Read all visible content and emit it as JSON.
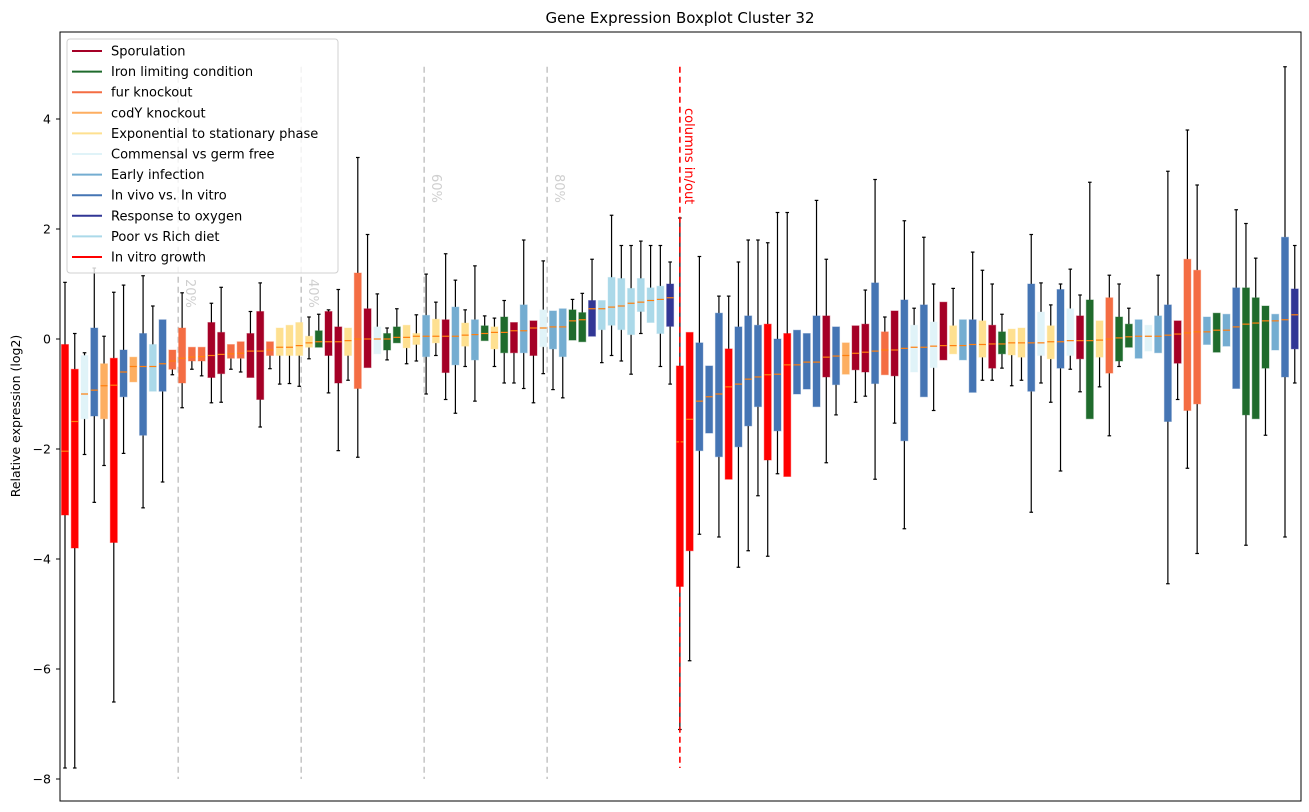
{
  "chart_data": {
    "type": "boxplot",
    "title": "Gene Expression Boxplot Cluster 32",
    "xlabel": "",
    "ylabel": "Relative expression (log2)",
    "ylim": [
      -8.4,
      5.6
    ],
    "yticks": [
      4,
      2,
      0,
      -2,
      -4,
      -6,
      -8
    ],
    "grid": false,
    "legend_position": "top-left",
    "median_color": "#ff7f0e",
    "groups": [
      {
        "name": "Sporulation",
        "color": "#a50026"
      },
      {
        "name": "Iron limiting condition",
        "color": "#1f6b2c"
      },
      {
        "name": "fur knockout",
        "color": "#f46d43"
      },
      {
        "name": "codY knockout",
        "color": "#fdae61"
      },
      {
        "name": "Exponential to stationary phase",
        "color": "#fee090"
      },
      {
        "name": "Commensal vs germ free",
        "color": "#e0f3f8"
      },
      {
        "name": "Early infection",
        "color": "#74add1"
      },
      {
        "name": "In vivo vs. In vitro",
        "color": "#4575b4"
      },
      {
        "name": "Response to oxygen",
        "color": "#313695"
      },
      {
        "name": "Poor vs Rich diet",
        "color": "#abd9e9"
      },
      {
        "name": "In vitro growth",
        "color": "#ff0000"
      }
    ],
    "box_fields": [
      "group_index",
      "q1",
      "q3",
      "median",
      "whisker_low",
      "whisker_high"
    ],
    "boxes": [
      [
        10,
        -3.2,
        -0.1,
        -2.04,
        -7.8,
        1.03
      ],
      [
        10,
        -3.8,
        -0.55,
        -1.5,
        -7.8,
        0.1
      ],
      [
        5,
        -1.45,
        -0.3,
        -1.0,
        -2.1,
        -0.25
      ],
      [
        7,
        -1.4,
        0.2,
        -0.93,
        -2.97,
        1.29
      ],
      [
        3,
        -1.45,
        -0.45,
        -0.85,
        -2.3,
        0.05
      ],
      [
        10,
        -3.7,
        -0.35,
        -0.84,
        -6.6,
        0.85
      ],
      [
        7,
        -1.05,
        -0.2,
        -0.6,
        -2.08,
        0.98
      ],
      [
        3,
        -0.78,
        -0.33,
        -0.5,
        -0.78,
        -0.33
      ],
      [
        7,
        -1.75,
        0.1,
        -0.5,
        -3.07,
        1.15
      ],
      [
        9,
        -0.95,
        -0.1,
        -0.5,
        -0.95,
        0.6
      ],
      [
        7,
        -0.95,
        0.35,
        -0.45,
        -2.6,
        0.35
      ],
      [
        2,
        -0.55,
        -0.2,
        -0.4,
        -0.65,
        -0.2
      ],
      [
        2,
        -0.8,
        0.2,
        -0.35,
        -1.25,
        0.84
      ],
      [
        2,
        -0.4,
        -0.15,
        -0.33,
        -0.55,
        -0.15
      ],
      [
        2,
        -0.4,
        -0.15,
        -0.32,
        -0.67,
        -0.15
      ],
      [
        0,
        -0.7,
        0.3,
        -0.3,
        -1.16,
        0.65
      ],
      [
        0,
        -0.63,
        0.12,
        -0.28,
        -1.15,
        0.94
      ],
      [
        2,
        -0.35,
        -0.1,
        -0.27,
        -0.55,
        -0.1
      ],
      [
        2,
        -0.35,
        -0.05,
        -0.26,
        -0.6,
        -0.05
      ],
      [
        0,
        -0.7,
        0.1,
        -0.22,
        -0.7,
        0.5
      ],
      [
        0,
        -1.1,
        0.5,
        -0.22,
        -1.6,
        1.02
      ],
      [
        2,
        -0.3,
        -0.05,
        -0.2,
        -0.54,
        -0.05
      ],
      [
        4,
        -0.3,
        0.2,
        -0.15,
        -0.82,
        0.2
      ],
      [
        4,
        -0.3,
        0.25,
        -0.15,
        -0.81,
        0.25
      ],
      [
        4,
        -0.3,
        0.3,
        -0.12,
        -0.86,
        0.3
      ],
      [
        4,
        -0.15,
        0.05,
        -0.07,
        -0.36,
        0.4
      ],
      [
        1,
        -0.15,
        0.15,
        -0.05,
        -0.15,
        0.45
      ],
      [
        0,
        -0.3,
        0.5,
        -0.05,
        -0.98,
        0.53
      ],
      [
        0,
        -0.8,
        0.22,
        -0.05,
        -2.03,
        0.9
      ],
      [
        4,
        -0.3,
        0.2,
        -0.03,
        -0.75,
        0.2
      ],
      [
        2,
        -0.9,
        1.2,
        0.0,
        -2.15,
        3.3
      ],
      [
        0,
        -0.52,
        0.55,
        0.0,
        -0.52,
        1.9
      ],
      [
        5,
        -0.27,
        0.22,
        0.0,
        -0.27,
        0.82
      ],
      [
        1,
        -0.2,
        0.1,
        0.0,
        -0.38,
        0.2
      ],
      [
        1,
        -0.07,
        0.22,
        0.03,
        -0.07,
        0.55
      ],
      [
        4,
        -0.16,
        0.25,
        0.03,
        -0.45,
        0.25
      ],
      [
        4,
        -0.1,
        0.1,
        0.05,
        -0.4,
        0.44
      ],
      [
        6,
        -0.32,
        0.43,
        0.05,
        -1.0,
        1.18
      ],
      [
        4,
        -0.07,
        0.36,
        0.05,
        -0.3,
        0.67
      ],
      [
        0,
        -0.61,
        0.35,
        0.05,
        -1.1,
        1.55
      ],
      [
        6,
        -0.47,
        0.58,
        0.05,
        -1.35,
        1.07
      ],
      [
        4,
        -0.13,
        0.29,
        0.07,
        -0.5,
        0.53
      ],
      [
        6,
        -0.38,
        0.35,
        0.08,
        -1.13,
        1.33
      ],
      [
        1,
        -0.03,
        0.24,
        0.1,
        -0.03,
        0.42
      ],
      [
        4,
        -0.18,
        0.22,
        0.12,
        -0.5,
        0.38
      ],
      [
        1,
        -0.25,
        0.4,
        0.12,
        -0.8,
        0.7
      ],
      [
        0,
        -0.25,
        0.3,
        0.15,
        -0.8,
        0.3
      ],
      [
        6,
        -0.25,
        0.62,
        0.15,
        -0.9,
        1.8
      ],
      [
        0,
        -0.3,
        0.33,
        0.2,
        -1.16,
        0.33
      ],
      [
        5,
        -0.14,
        0.53,
        0.2,
        -0.63,
        1.42
      ],
      [
        6,
        -0.18,
        0.51,
        0.22,
        -0.92,
        0.51
      ],
      [
        6,
        -0.32,
        0.55,
        0.22,
        -1.07,
        0.55
      ],
      [
        1,
        -0.02,
        0.53,
        0.33,
        -0.02,
        0.72
      ],
      [
        1,
        -0.05,
        0.48,
        0.35,
        -0.05,
        0.83
      ],
      [
        8,
        0.05,
        0.7,
        0.55,
        0.05,
        1.45
      ],
      [
        9,
        0.17,
        0.7,
        0.55,
        -0.43,
        0.7
      ],
      [
        9,
        0.25,
        1.12,
        0.58,
        -0.3,
        2.25
      ],
      [
        9,
        0.17,
        1.1,
        0.6,
        -0.4,
        1.7
      ],
      [
        9,
        0.08,
        0.92,
        0.65,
        -0.64,
        1.7
      ],
      [
        9,
        0.5,
        1.1,
        0.67,
        0.1,
        1.78
      ],
      [
        9,
        0.3,
        0.93,
        0.7,
        0.3,
        1.7
      ],
      [
        9,
        0.1,
        0.96,
        0.72,
        -0.5,
        1.7
      ],
      [
        8,
        0.23,
        1.0,
        0.75,
        -0.82,
        1.4
      ],
      [
        10,
        -4.5,
        -0.49,
        -1.87,
        -7.1,
        2.2
      ],
      [
        10,
        -3.85,
        0.12,
        -1.46,
        -5.85,
        0.12
      ],
      [
        7,
        -2.03,
        -0.07,
        -1.13,
        -3.55,
        1.5
      ],
      [
        7,
        -1.71,
        -0.49,
        -1.05,
        -1.71,
        -0.49
      ],
      [
        7,
        -2.14,
        0.47,
        -1.0,
        -3.6,
        0.78
      ],
      [
        10,
        -2.55,
        -0.18,
        -0.87,
        -2.55,
        0.78
      ],
      [
        7,
        -1.96,
        0.22,
        -0.82,
        -4.15,
        1.4
      ],
      [
        7,
        -1.58,
        0.42,
        -0.73,
        -3.85,
        1.8
      ],
      [
        7,
        -1.23,
        0.25,
        -0.69,
        -2.85,
        1.8
      ],
      [
        10,
        -2.2,
        0.27,
        -0.65,
        -3.95,
        1.75
      ],
      [
        7,
        -1.67,
        0.0,
        -0.64,
        -2.45,
        2.3
      ],
      [
        10,
        -2.5,
        0.1,
        -0.47,
        -2.5,
        2.3
      ],
      [
        7,
        -1.0,
        0.16,
        -0.47,
        -1.0,
        0.16
      ],
      [
        7,
        -0.91,
        0.1,
        -0.42,
        -0.91,
        0.1
      ],
      [
        7,
        -1.23,
        0.42,
        -0.42,
        -1.23,
        2.52
      ],
      [
        0,
        -0.69,
        0.42,
        -0.33,
        -2.25,
        1.45
      ],
      [
        7,
        -0.83,
        0.22,
        -0.31,
        -1.38,
        0.22
      ],
      [
        3,
        -0.64,
        -0.07,
        -0.3,
        -0.64,
        -0.07
      ],
      [
        0,
        -0.56,
        0.24,
        -0.26,
        -1.15,
        0.24
      ],
      [
        0,
        -0.6,
        0.27,
        -0.24,
        -1.04,
        0.89
      ],
      [
        7,
        -0.81,
        1.02,
        -0.22,
        -2.55,
        2.9
      ],
      [
        2,
        -0.65,
        0.13,
        -0.2,
        -0.65,
        0.4
      ],
      [
        0,
        -0.67,
        0.51,
        -0.2,
        -1.53,
        0.51
      ],
      [
        7,
        -1.85,
        0.71,
        -0.17,
        -3.45,
        2.15
      ],
      [
        5,
        -0.6,
        0.25,
        -0.15,
        -0.6,
        0.56
      ],
      [
        7,
        -1.05,
        0.62,
        -0.15,
        -1.05,
        1.85
      ],
      [
        5,
        -0.52,
        0.31,
        -0.13,
        -1.3,
        1.0
      ],
      [
        0,
        -0.38,
        0.67,
        -0.12,
        -0.38,
        0.67
      ],
      [
        4,
        -0.27,
        0.24,
        -0.12,
        -0.27,
        0.92
      ],
      [
        6,
        -0.38,
        0.35,
        -0.12,
        -0.38,
        0.35
      ],
      [
        7,
        -0.97,
        0.35,
        -0.1,
        -0.97,
        1.58
      ],
      [
        4,
        -0.33,
        0.33,
        -0.1,
        -0.75,
        1.25
      ],
      [
        0,
        -0.53,
        0.25,
        -0.09,
        -0.75,
        1.0
      ],
      [
        1,
        -0.27,
        0.13,
        -0.09,
        -0.53,
        0.45
      ],
      [
        4,
        -0.29,
        0.18,
        -0.07,
        -0.85,
        0.18
      ],
      [
        4,
        -0.33,
        0.2,
        -0.07,
        -0.75,
        0.2
      ],
      [
        7,
        -0.95,
        1.0,
        -0.07,
        -3.15,
        1.9
      ],
      [
        5,
        -0.3,
        0.49,
        -0.07,
        -0.8,
        1.02
      ],
      [
        4,
        -0.36,
        0.24,
        -0.05,
        -1.15,
        0.62
      ],
      [
        7,
        -0.53,
        0.9,
        -0.05,
        -2.4,
        1.0
      ],
      [
        5,
        -0.3,
        0.55,
        -0.03,
        -0.55,
        1.27
      ],
      [
        0,
        -0.36,
        0.42,
        -0.03,
        -0.96,
        0.8
      ],
      [
        1,
        -1.45,
        0.71,
        -0.03,
        -1.45,
        2.85
      ],
      [
        4,
        -0.33,
        0.33,
        -0.02,
        -0.87,
        0.33
      ],
      [
        2,
        -0.62,
        0.75,
        0.0,
        -1.76,
        1.16
      ],
      [
        1,
        -0.4,
        0.4,
        0.02,
        -0.5,
        1.0
      ],
      [
        1,
        -0.15,
        0.27,
        0.04,
        -0.15,
        0.56
      ],
      [
        6,
        -0.35,
        0.35,
        0.05,
        -0.35,
        0.35
      ],
      [
        5,
        -0.22,
        0.25,
        0.05,
        -0.22,
        0.25
      ],
      [
        6,
        -0.25,
        0.42,
        0.05,
        -0.25,
        1.16
      ],
      [
        7,
        -1.5,
        0.62,
        0.07,
        -4.45,
        3.05
      ],
      [
        0,
        -0.44,
        0.33,
        0.09,
        -1.1,
        0.33
      ],
      [
        2,
        -1.3,
        1.45,
        0.11,
        -2.35,
        3.8
      ],
      [
        2,
        -1.18,
        1.25,
        0.13,
        -3.9,
        2.8
      ],
      [
        6,
        -0.1,
        0.4,
        0.13,
        -0.1,
        0.4
      ],
      [
        1,
        -0.24,
        0.47,
        0.16,
        -0.24,
        0.47
      ],
      [
        6,
        -0.13,
        0.45,
        0.16,
        -0.13,
        0.45
      ],
      [
        7,
        -0.9,
        0.93,
        0.22,
        -0.9,
        2.35
      ],
      [
        1,
        -1.38,
        0.93,
        0.27,
        -3.75,
        2.1
      ],
      [
        1,
        -1.45,
        0.75,
        0.29,
        -1.45,
        1.47
      ],
      [
        1,
        -0.53,
        0.6,
        0.33,
        -1.75,
        0.6
      ],
      [
        6,
        -0.2,
        0.45,
        0.33,
        -0.2,
        0.45
      ],
      [
        7,
        -0.69,
        1.85,
        0.35,
        -3.6,
        4.95
      ],
      [
        8,
        -0.18,
        0.91,
        0.44,
        -0.8,
        1.7
      ]
    ],
    "percentile_markers": [
      {
        "label": "20%",
        "box_position": 11.6
      },
      {
        "label": "40%",
        "box_position": 24.2
      },
      {
        "label": "60%",
        "box_position": 36.8
      },
      {
        "label": "80%",
        "box_position": 49.4
      }
    ],
    "cutoff_marker": {
      "label": "columns in/out",
      "box_position": 63.0,
      "color": "#ff0000"
    }
  }
}
